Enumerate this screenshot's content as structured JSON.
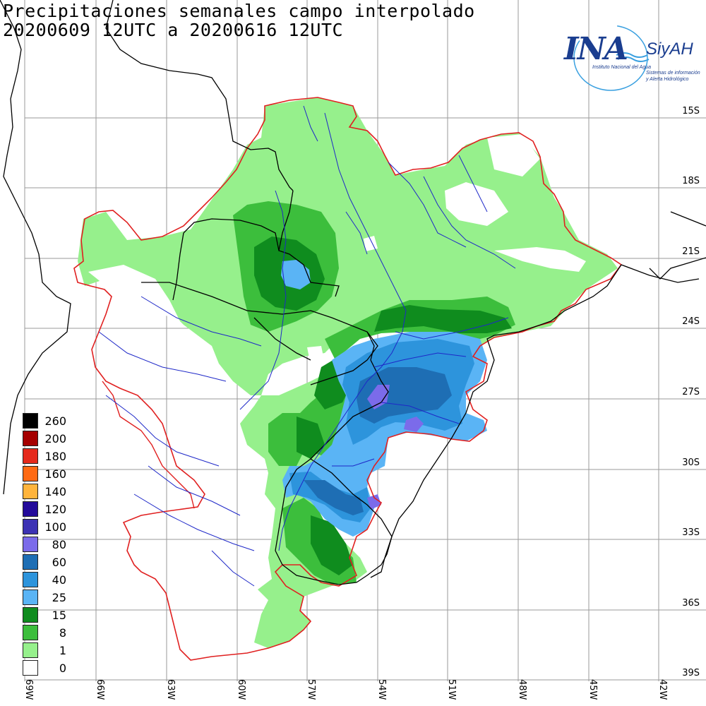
{
  "title": {
    "line1": "Precipitaciones semanales campo interpolado",
    "line2": "20200609 12UTC a 20200616 12UTC"
  },
  "logo": {
    "name": "INA",
    "brand": "SiyAH",
    "subtitle": "Instituto Nacional del Agua",
    "tagline_1": "Sistemas de información",
    "tagline_2": "y Alerta Hidrológico"
  },
  "lat_labels": [
    "15S",
    "18S",
    "21S",
    "24S",
    "27S",
    "30S",
    "33S",
    "36S",
    "39S"
  ],
  "lon_labels": [
    "69W",
    "66W",
    "63W",
    "60W",
    "57W",
    "54W",
    "51W",
    "48W",
    "45W",
    "42W"
  ],
  "legend": {
    "items": [
      {
        "label": "260",
        "color": "#000000"
      },
      {
        "label": "200",
        "color": "#a50000"
      },
      {
        "label": "180",
        "color": "#e52a1c"
      },
      {
        "label": "160",
        "color": "#ff6a14"
      },
      {
        "label": "140",
        "color": "#ffb43c"
      },
      {
        "label": "120",
        "color": "#230a9a"
      },
      {
        "label": "100",
        "color": "#3c32b4"
      },
      {
        "label": "80",
        "color": "#7b6bea"
      },
      {
        "label": "60",
        "color": "#1e6eb4"
      },
      {
        "label": "40",
        "color": "#2d94dc"
      },
      {
        "label": "25",
        "color": "#5ab4f5"
      },
      {
        "label": "15",
        "color": "#0f8c1e"
      },
      {
        "label": "8",
        "color": "#3cbe3c"
      },
      {
        "label": "1",
        "color": "#96f08c"
      },
      {
        "label": "0",
        "color": "#ffffff"
      }
    ]
  },
  "colors": {
    "basin_outline": "#e02020",
    "rivers": "#1e28c8",
    "borders": "#000000",
    "grid": "#9a9a9a",
    "logo_blue": "#1a3d8f",
    "logo_wave": "#3aa0e0"
  }
}
